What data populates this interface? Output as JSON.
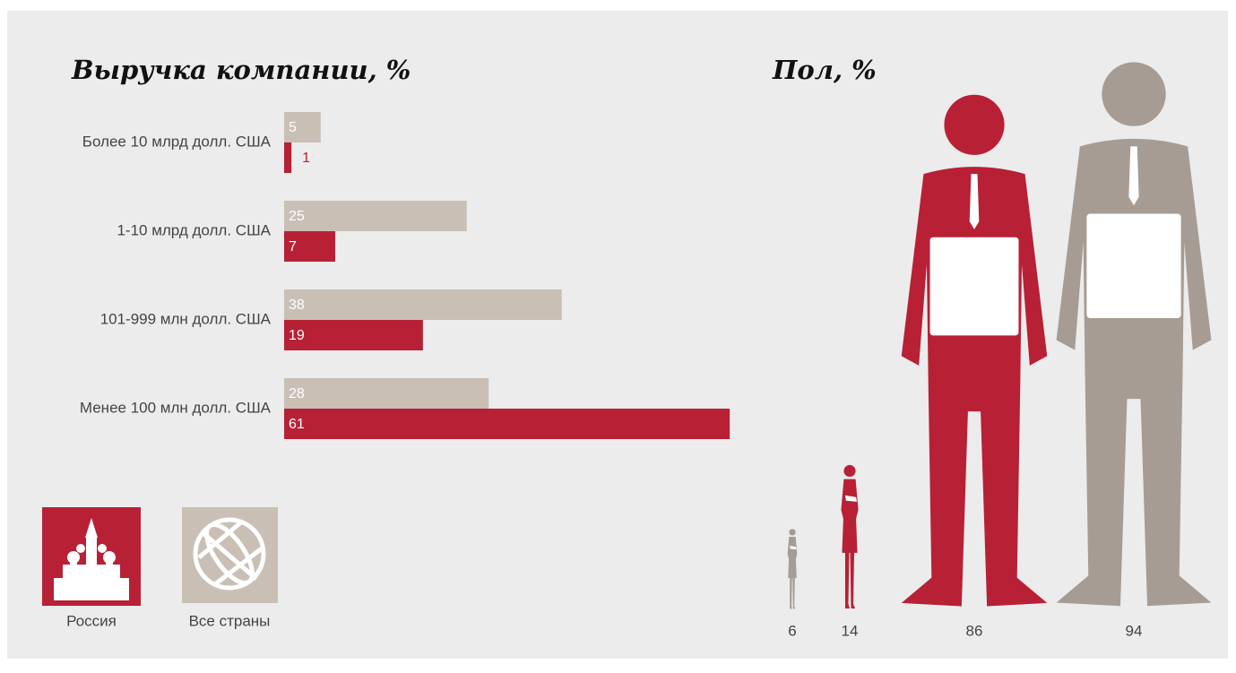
{
  "chart_data": [
    {
      "type": "hbar",
      "title": "Выручка компании, %",
      "categories": [
        "Более 10 млрд долл. США",
        "1-10 млрд долл. США",
        "101-999 млн долл. США",
        "Менее 100 млн долл. США"
      ],
      "series": [
        {
          "name": "Все страны",
          "color": "#c9bfb5",
          "values": [
            5,
            25,
            38,
            28
          ]
        },
        {
          "name": "Россия",
          "color": "#b82036",
          "values": [
            1,
            7,
            19,
            61
          ]
        }
      ]
    },
    {
      "type": "pictogram",
      "title": "Пол, %",
      "values": [
        6,
        14,
        86,
        94
      ],
      "colors": [
        "#a79c93",
        "#b82036",
        "#b82036",
        "#a79c93"
      ]
    }
  ]
}
